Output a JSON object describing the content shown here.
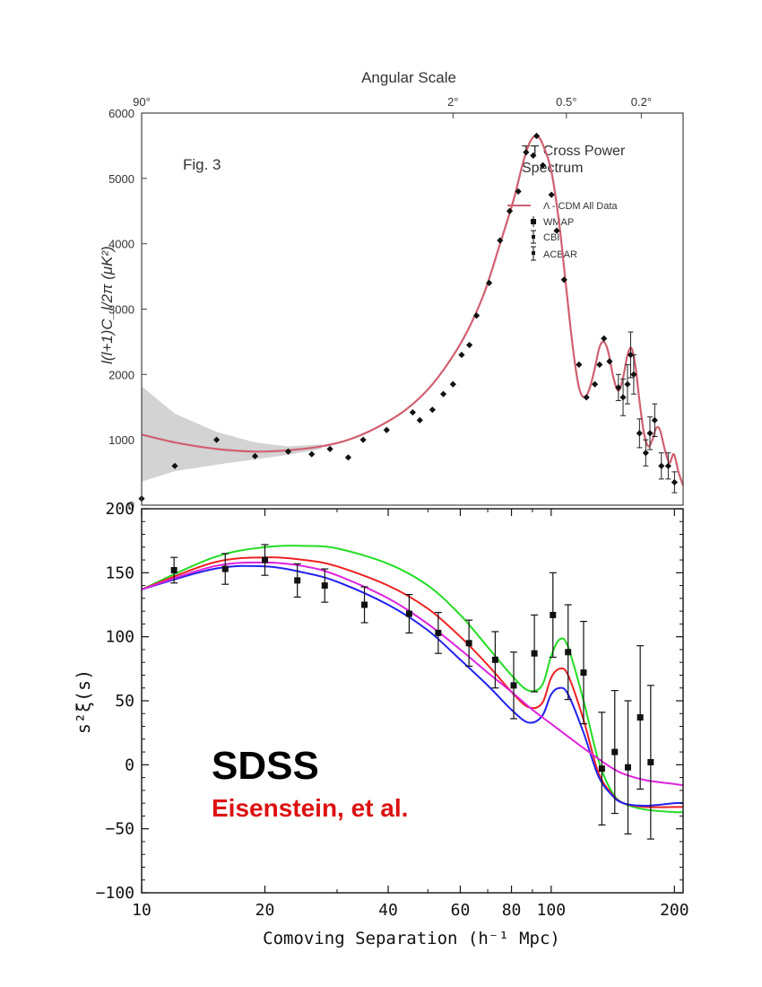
{
  "chart_data": [
    {
      "type": "scatter",
      "title": "",
      "annotation": "Fig. 3",
      "legend_title": [
        "TT Cross Power",
        "Spectrum"
      ],
      "legend_entries": [
        "Λ - CDM All Data",
        "WMAP",
        "CBI",
        "ACBAR"
      ],
      "legend_placement": "top-right",
      "top_axis_label": "Angular Scale",
      "top_ticks": [
        {
          "label": "90°",
          "l": 2
        },
        {
          "label": "2°",
          "l": 90
        },
        {
          "label": "0.5°",
          "l": 360
        },
        {
          "label": "0.2°",
          "l": 900
        }
      ],
      "xlabel": "",
      "ylabel": "l(l+1)C_l/2π (μK²)",
      "xlim": [
        2,
        1500
      ],
      "ylim": [
        0,
        6000
      ],
      "yticks": [
        "0",
        "1000",
        "2000",
        "3000",
        "4000",
        "5000",
        "6000"
      ],
      "grid": false,
      "model": {
        "name": "Λ - CDM All Data",
        "color": "#d06070",
        "band_color": "#d3d3d3",
        "l": [
          2,
          3,
          5,
          8,
          12,
          18,
          25,
          35,
          50,
          70,
          100,
          130,
          160,
          190,
          210,
          230,
          250,
          270,
          300,
          330,
          360,
          390,
          420,
          450,
          480,
          510,
          540,
          570,
          600,
          640,
          680,
          720,
          760,
          800,
          840,
          880,
          930,
          980,
          1030,
          1080,
          1130,
          1200,
          1270,
          1340,
          1420,
          1500
        ],
        "values": [
          1080,
          960,
          860,
          820,
          840,
          900,
          1000,
          1180,
          1450,
          1850,
          2500,
          3200,
          4000,
          4700,
          5200,
          5550,
          5650,
          5520,
          5100,
          4300,
          3300,
          2400,
          1800,
          1650,
          1800,
          2100,
          2420,
          2500,
          2350,
          1950,
          1750,
          1950,
          2300,
          2400,
          2100,
          1600,
          1100,
          900,
          1000,
          1180,
          1150,
          850,
          650,
          780,
          500,
          300
        ],
        "band_upper": [
          1820,
          1400,
          1120,
          960,
          900,
          930
        ],
        "band_lower": [
          360,
          520,
          620,
          700,
          770,
          860
        ]
      },
      "points": {
        "l": [
          2,
          3,
          5,
          8,
          12,
          16,
          20,
          25,
          30,
          40,
          55,
          60,
          70,
          80,
          90,
          100,
          110,
          120,
          140,
          160,
          180,
          200,
          220,
          240,
          250,
          270,
          300,
          320,
          350,
          420,
          460,
          510,
          540,
          570,
          610,
          680,
          720,
          760,
          790,
          820,
          880,
          950,
          1000,
          1060,
          1150,
          1250,
          1350
        ],
        "values": [
          100,
          600,
          1000,
          750,
          820,
          780,
          860,
          730,
          1000,
          1150,
          1420,
          1300,
          1460,
          1700,
          1850,
          2300,
          2450,
          2900,
          3400,
          4050,
          4500,
          4800,
          5400,
          5350,
          5650,
          5200,
          4750,
          4200,
          3450,
          2150,
          1650,
          1850,
          2150,
          2550,
          2200,
          1800,
          1650,
          1850,
          2300,
          2000,
          1100,
          800,
          1100,
          1300,
          600,
          600,
          350
        ],
        "errors": [
          0,
          0,
          0,
          0,
          0,
          0,
          0,
          0,
          0,
          0,
          0,
          0,
          0,
          0,
          0,
          0,
          0,
          0,
          0,
          0,
          0,
          0,
          0,
          0,
          0,
          0,
          0,
          0,
          0,
          0,
          0,
          0,
          0,
          0,
          0,
          200,
          280,
          300,
          350,
          300,
          220,
          200,
          250,
          250,
          200,
          200,
          160
        ]
      }
    },
    {
      "type": "line",
      "title": "",
      "xlabel": "Comoving Separation (h⁻¹ Mpc)",
      "ylabel": "s²ξ(s)",
      "xlim": [
        10,
        210
      ],
      "xscale": "log",
      "ylim": [
        -100,
        200
      ],
      "xticks": [
        10,
        20,
        40,
        60,
        80,
        100,
        200
      ],
      "yticks": [
        -100,
        -50,
        0,
        50,
        100,
        150,
        200
      ],
      "grid": false,
      "annotations": [
        {
          "text": "SDSS",
          "color": "#000000"
        },
        {
          "text": "Eisenstein, et al.",
          "color": "#dd1111"
        }
      ],
      "series": [
        {
          "color": "#22dd22",
          "x": [
            10,
            15,
            20,
            25,
            30,
            40,
            50,
            60,
            70,
            80,
            88,
            95,
            100,
            105,
            110,
            120,
            130,
            140,
            150,
            170,
            200,
            210
          ],
          "y": [
            137,
            162,
            170,
            171,
            169,
            157,
            140,
            117,
            92,
            70,
            58,
            62,
            85,
            98,
            92,
            50,
            5,
            -20,
            -30,
            -35,
            -37,
            -37
          ]
        },
        {
          "color": "#ee2222",
          "x": [
            10,
            15,
            20,
            25,
            30,
            40,
            50,
            60,
            70,
            80,
            88,
            95,
            100,
            105,
            110,
            120,
            130,
            140,
            150,
            170,
            200,
            210
          ],
          "y": [
            137,
            158,
            162,
            160,
            155,
            140,
            122,
            100,
            78,
            57,
            45,
            48,
            68,
            75,
            70,
            35,
            -5,
            -22,
            -30,
            -33,
            -33,
            -33
          ]
        },
        {
          "color": "#2222ee",
          "x": [
            10,
            15,
            20,
            25,
            30,
            40,
            50,
            60,
            70,
            80,
            88,
            95,
            100,
            105,
            110,
            120,
            130,
            140,
            150,
            170,
            200,
            210
          ],
          "y": [
            137,
            153,
            155,
            150,
            143,
            125,
            105,
            82,
            62,
            43,
            33,
            38,
            55,
            60,
            55,
            25,
            -8,
            -23,
            -30,
            -32,
            -30,
            -30
          ]
        },
        {
          "color": "#dd22dd",
          "x": [
            10,
            15,
            20,
            25,
            30,
            40,
            50,
            60,
            70,
            80,
            90,
            100,
            110,
            120,
            130,
            140,
            150,
            170,
            200,
            210
          ],
          "y": [
            137,
            155,
            158,
            155,
            148,
            130,
            110,
            90,
            72,
            57,
            43,
            32,
            22,
            13,
            5,
            -2,
            -7,
            -12,
            -15,
            -16
          ]
        }
      ],
      "points": {
        "x": [
          12,
          16,
          20,
          24,
          28,
          35,
          45,
          53,
          63,
          73,
          81,
          91,
          101,
          110,
          120,
          133,
          143,
          154,
          165,
          175
        ],
        "y": [
          152,
          153,
          160,
          144,
          140,
          125,
          118,
          103,
          95,
          82,
          62,
          87,
          117,
          88,
          72,
          -3,
          10,
          -2,
          37,
          2
        ],
        "errors": [
          10,
          12,
          12,
          13,
          13,
          14,
          15,
          16,
          18,
          22,
          26,
          30,
          33,
          37,
          40,
          44,
          48,
          52,
          56,
          60
        ]
      }
    }
  ]
}
